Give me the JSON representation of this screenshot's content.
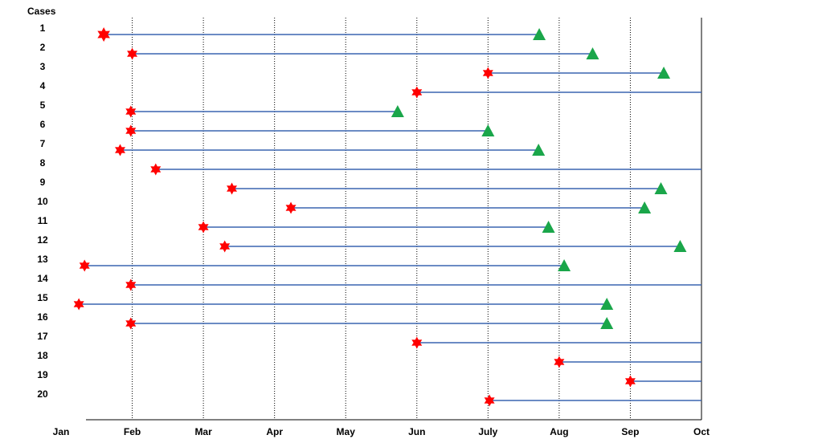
{
  "chart_data": {
    "type": "timeline",
    "y_axis_title": "Cases",
    "x_ticks": [
      "Jan",
      "Feb",
      "Mar",
      "Apr",
      "May",
      "Jun",
      "July",
      "Aug",
      "Sep",
      "Oct"
    ],
    "x_range": [
      "Jan",
      "Oct"
    ],
    "gridlines": "vertical dotted at each month",
    "colors": {
      "line": "#3a65b0",
      "start_marker": "#ff0000",
      "end_marker": "#1aa64a",
      "grid": "#000000"
    },
    "series": [
      {
        "name": "start",
        "marker": "red-star"
      },
      {
        "name": "end",
        "marker": "green-triangle"
      }
    ],
    "cases": [
      {
        "label": "1",
        "start": 0.6,
        "end": 6.72
      },
      {
        "label": "2",
        "start": 1.0,
        "end": 7.47
      },
      {
        "label": "3",
        "start": 6.0,
        "end": 8.47
      },
      {
        "label": "4",
        "start": 5.0,
        "end": null
      },
      {
        "label": "5",
        "start": 0.98,
        "end": 4.73
      },
      {
        "label": "6",
        "start": 0.98,
        "end": 6.0
      },
      {
        "label": "7",
        "start": 0.83,
        "end": 6.71
      },
      {
        "label": "8",
        "start": 1.33,
        "end": null
      },
      {
        "label": "9",
        "start": 2.4,
        "end": 8.43
      },
      {
        "label": "10",
        "start": 3.23,
        "end": 8.2
      },
      {
        "label": "11",
        "start": 2.0,
        "end": 6.85
      },
      {
        "label": "12",
        "start": 2.3,
        "end": 8.7
      },
      {
        "label": "13",
        "start": 0.33,
        "end": 7.07
      },
      {
        "label": "14",
        "start": 0.98,
        "end": null
      },
      {
        "label": "15",
        "start": 0.25,
        "end": 7.67
      },
      {
        "label": "16",
        "start": 0.98,
        "end": 7.67
      },
      {
        "label": "17",
        "start": 5.0,
        "end": null
      },
      {
        "label": "18",
        "start": 7.0,
        "end": null
      },
      {
        "label": "19",
        "start": 8.0,
        "end": null
      },
      {
        "label": "20",
        "start": 6.02,
        "end": null
      }
    ]
  }
}
